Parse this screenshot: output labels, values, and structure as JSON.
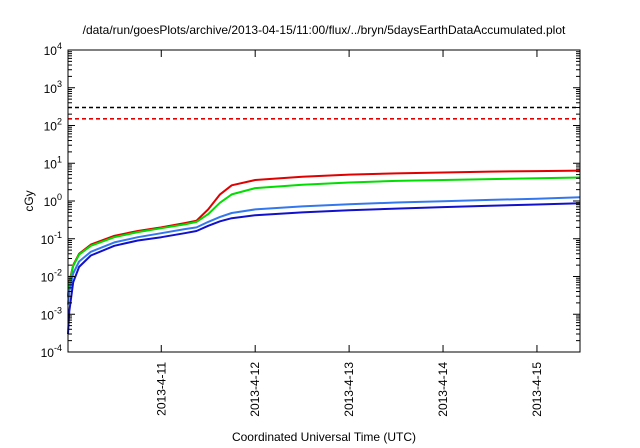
{
  "chart_data": {
    "type": "line",
    "title": "/data/run/goesPlots/archive/2013-04-15/11:00/flux/../bryn/5daysEarthDataAccumulated.plot",
    "xlabel": "Coordinated Universal Time (UTC)",
    "ylabel": "cGy",
    "y_scale": "log",
    "ylim": [
      0.0001,
      10000
    ],
    "xlim": [
      "2013-04-10 00:10",
      "2013-04-15 11:00"
    ],
    "x_tick_labels": [
      "2013-4-11",
      "2013-4-12",
      "2013-4-13",
      "2013-4-14",
      "2013-4-15"
    ],
    "x_tick_dates": [
      "2013-04-11",
      "2013-04-12",
      "2013-04-13",
      "2013-04-14",
      "2013-04-15"
    ],
    "y_ticks": [
      {
        "base": "10",
        "exp": "-4",
        "value": 0.0001
      },
      {
        "base": "10",
        "exp": "-3",
        "value": 0.001
      },
      {
        "base": "10",
        "exp": "-2",
        "value": 0.01
      },
      {
        "base": "10",
        "exp": "-1",
        "value": 0.1
      },
      {
        "base": "10",
        "exp": "0",
        "value": 1
      },
      {
        "base": "10",
        "exp": "1",
        "value": 10
      },
      {
        "base": "10",
        "exp": "2",
        "value": 100
      },
      {
        "base": "10",
        "exp": "3",
        "value": 1000
      },
      {
        "base": "10",
        "exp": "4",
        "value": 10000
      }
    ],
    "grid": false,
    "legend": "none",
    "reference_lines": [
      {
        "y": 300,
        "color": "#000000",
        "style": "dashed"
      },
      {
        "y": 150,
        "color": "#e00000",
        "style": "dashed"
      }
    ],
    "series": [
      {
        "color": "#e00000",
        "x": [
          "2013-04-10 00:10",
          "2013-04-10 00:30",
          "2013-04-10 01:30",
          "2013-04-10 03:00",
          "2013-04-10 06:00",
          "2013-04-10 12:00",
          "2013-04-10 18:00",
          "2013-04-11 00:00",
          "2013-04-11 06:00",
          "2013-04-11 09:00",
          "2013-04-11 12:00",
          "2013-04-11 15:00",
          "2013-04-11 18:00",
          "2013-04-12 00:00",
          "2013-04-12 12:00",
          "2013-04-13 00:00",
          "2013-04-13 12:00",
          "2013-04-14 00:00",
          "2013-04-14 12:00",
          "2013-04-15 00:00",
          "2013-04-15 11:00"
        ],
        "y": [
          0.003,
          0.007,
          0.02,
          0.04,
          0.07,
          0.12,
          0.16,
          0.2,
          0.26,
          0.3,
          0.6,
          1.5,
          2.6,
          3.6,
          4.4,
          5.0,
          5.4,
          5.7,
          6.0,
          6.2,
          6.4
        ]
      },
      {
        "color": "#00dd00",
        "x": [
          "2013-04-10 00:10",
          "2013-04-10 00:30",
          "2013-04-10 01:30",
          "2013-04-10 03:00",
          "2013-04-10 06:00",
          "2013-04-10 12:00",
          "2013-04-10 18:00",
          "2013-04-11 00:00",
          "2013-04-11 06:00",
          "2013-04-11 09:00",
          "2013-04-11 12:00",
          "2013-04-11 15:00",
          "2013-04-11 18:00",
          "2013-04-12 00:00",
          "2013-04-12 12:00",
          "2013-04-13 00:00",
          "2013-04-13 12:00",
          "2013-04-14 00:00",
          "2013-04-14 12:00",
          "2013-04-15 00:00",
          "2013-04-15 11:00"
        ],
        "y": [
          0.0028,
          0.0065,
          0.019,
          0.038,
          0.065,
          0.11,
          0.15,
          0.19,
          0.24,
          0.28,
          0.45,
          0.9,
          1.5,
          2.2,
          2.7,
          3.1,
          3.4,
          3.6,
          3.8,
          4.0,
          4.2
        ]
      },
      {
        "color": "#3377ee",
        "x": [
          "2013-04-10 00:10",
          "2013-04-10 00:30",
          "2013-04-10 01:30",
          "2013-04-10 03:00",
          "2013-04-10 06:00",
          "2013-04-10 12:00",
          "2013-04-10 18:00",
          "2013-04-11 00:00",
          "2013-04-11 06:00",
          "2013-04-11 09:00",
          "2013-04-11 12:00",
          "2013-04-11 15:00",
          "2013-04-11 18:00",
          "2013-04-12 00:00",
          "2013-04-12 12:00",
          "2013-04-13 00:00",
          "2013-04-13 12:00",
          "2013-04-14 00:00",
          "2013-04-14 12:00",
          "2013-04-15 00:00",
          "2013-04-15 11:00"
        ],
        "y": [
          0.0018,
          0.004,
          0.012,
          0.025,
          0.045,
          0.08,
          0.11,
          0.14,
          0.18,
          0.2,
          0.28,
          0.38,
          0.48,
          0.6,
          0.72,
          0.82,
          0.91,
          0.99,
          1.07,
          1.15,
          1.25
        ]
      },
      {
        "color": "#1111cc",
        "x": [
          "2013-04-10 00:10",
          "2013-04-10 00:30",
          "2013-04-10 01:30",
          "2013-04-10 03:00",
          "2013-04-10 06:00",
          "2013-04-10 12:00",
          "2013-04-10 18:00",
          "2013-04-11 00:00",
          "2013-04-11 06:00",
          "2013-04-11 09:00",
          "2013-04-11 12:00",
          "2013-04-11 15:00",
          "2013-04-11 18:00",
          "2013-04-12 00:00",
          "2013-04-12 12:00",
          "2013-04-13 00:00",
          "2013-04-13 12:00",
          "2013-04-14 00:00",
          "2013-04-14 12:00",
          "2013-04-15 00:00",
          "2013-04-15 11:00"
        ],
        "y": [
          0.0003,
          0.0012,
          0.007,
          0.018,
          0.036,
          0.065,
          0.09,
          0.11,
          0.14,
          0.16,
          0.22,
          0.29,
          0.35,
          0.42,
          0.5,
          0.57,
          0.63,
          0.69,
          0.75,
          0.81,
          0.87
        ]
      }
    ]
  }
}
